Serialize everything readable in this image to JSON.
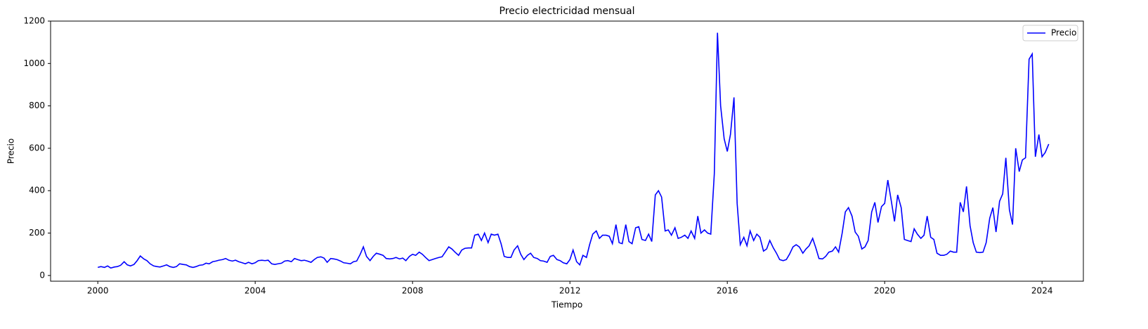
{
  "chart_data": {
    "type": "line",
    "title": "Precio electricidad mensual",
    "xlabel": "Tiempo",
    "ylabel": "Precio",
    "xlim": [
      1998.8,
      2025.05
    ],
    "xticks": [
      2000,
      2004,
      2008,
      2012,
      2016,
      2020,
      2024
    ],
    "ylim": [
      -27,
      1200
    ],
    "yticks": [
      0,
      200,
      400,
      600,
      800,
      1000,
      1200
    ],
    "legend": "upper right",
    "grid": false,
    "x": [
      2000.0,
      2000.08,
      2000.17,
      2000.25,
      2000.33,
      2000.42,
      2000.5,
      2000.58,
      2000.67,
      2000.75,
      2000.83,
      2000.92,
      2001.0,
      2001.08,
      2001.17,
      2001.25,
      2001.33,
      2001.42,
      2001.5,
      2001.58,
      2001.67,
      2001.75,
      2001.83,
      2001.92,
      2002.0,
      2002.08,
      2002.17,
      2002.25,
      2002.33,
      2002.42,
      2002.5,
      2002.58,
      2002.67,
      2002.75,
      2002.83,
      2002.92,
      2003.0,
      2003.08,
      2003.17,
      2003.25,
      2003.33,
      2003.42,
      2003.5,
      2003.58,
      2003.67,
      2003.75,
      2003.83,
      2003.92,
      2004.0,
      2004.08,
      2004.17,
      2004.25,
      2004.33,
      2004.42,
      2004.5,
      2004.58,
      2004.67,
      2004.75,
      2004.83,
      2004.92,
      2005.0,
      2005.08,
      2005.17,
      2005.25,
      2005.33,
      2005.42,
      2005.5,
      2005.58,
      2005.67,
      2005.75,
      2005.83,
      2005.92,
      2006.0,
      2006.08,
      2006.17,
      2006.25,
      2006.33,
      2006.42,
      2006.5,
      2006.58,
      2006.67,
      2006.75,
      2006.83,
      2006.92,
      2007.0,
      2007.08,
      2007.17,
      2007.25,
      2007.33,
      2007.42,
      2007.5,
      2007.58,
      2007.67,
      2007.75,
      2007.83,
      2007.92,
      2008.0,
      2008.08,
      2008.17,
      2008.25,
      2008.33,
      2008.42,
      2008.5,
      2008.58,
      2008.67,
      2008.75,
      2008.83,
      2008.92,
      2009.0,
      2009.08,
      2009.17,
      2009.25,
      2009.33,
      2009.42,
      2009.5,
      2009.58,
      2009.67,
      2009.75,
      2009.83,
      2009.92,
      2010.0,
      2010.08,
      2010.17,
      2010.25,
      2010.33,
      2010.42,
      2010.5,
      2010.58,
      2010.67,
      2010.75,
      2010.83,
      2010.92,
      2011.0,
      2011.08,
      2011.17,
      2011.25,
      2011.33,
      2011.42,
      2011.5,
      2011.58,
      2011.67,
      2011.75,
      2011.83,
      2011.92,
      2012.0,
      2012.08,
      2012.17,
      2012.25,
      2012.33,
      2012.42,
      2012.5,
      2012.58,
      2012.67,
      2012.75,
      2012.83,
      2012.92,
      2013.0,
      2013.08,
      2013.17,
      2013.25,
      2013.33,
      2013.42,
      2013.5,
      2013.58,
      2013.67,
      2013.75,
      2013.83,
      2013.92,
      2014.0,
      2014.08,
      2014.17,
      2014.25,
      2014.33,
      2014.42,
      2014.5,
      2014.58,
      2014.67,
      2014.75,
      2014.83,
      2014.92,
      2015.0,
      2015.08,
      2015.17,
      2015.25,
      2015.33,
      2015.42,
      2015.5,
      2015.58,
      2015.67,
      2015.75,
      2015.83,
      2015.92,
      2016.0,
      2016.08,
      2016.17,
      2016.25,
      2016.33,
      2016.42,
      2016.5,
      2016.58,
      2016.67,
      2016.75,
      2016.83,
      2016.92,
      2017.0,
      2017.08,
      2017.17,
      2017.25,
      2017.33,
      2017.42,
      2017.5,
      2017.58,
      2017.67,
      2017.75,
      2017.83,
      2017.92,
      2018.0,
      2018.08,
      2018.17,
      2018.25,
      2018.33,
      2018.42,
      2018.5,
      2018.58,
      2018.67,
      2018.75,
      2018.83,
      2018.92,
      2019.0,
      2019.08,
      2019.17,
      2019.25,
      2019.33,
      2019.42,
      2019.5,
      2019.58,
      2019.67,
      2019.75,
      2019.83,
      2019.92,
      2020.0,
      2020.08,
      2020.17,
      2020.25,
      2020.33,
      2020.42,
      2020.5,
      2020.58,
      2020.67,
      2020.75,
      2020.83,
      2020.92,
      2021.0,
      2021.08,
      2021.17,
      2021.25,
      2021.33,
      2021.42,
      2021.5,
      2021.58,
      2021.67,
      2021.75,
      2021.83,
      2021.92,
      2022.0,
      2022.08,
      2022.17,
      2022.25,
      2022.33,
      2022.42,
      2022.5,
      2022.58,
      2022.67,
      2022.75,
      2022.83,
      2022.92,
      2023.0,
      2023.08,
      2023.17,
      2023.25,
      2023.33,
      2023.42,
      2023.5,
      2023.58,
      2023.67,
      2023.75,
      2023.83,
      2023.92,
      2024.0,
      2024.08,
      2024.17
    ],
    "series": [
      {
        "name": "Precio",
        "color": "#0000ff",
        "values": [
          38,
          42,
          38,
          45,
          35,
          40,
          42,
          48,
          65,
          50,
          45,
          52,
          70,
          92,
          78,
          70,
          55,
          45,
          42,
          40,
          45,
          50,
          42,
          38,
          42,
          55,
          52,
          50,
          42,
          38,
          42,
          48,
          50,
          58,
          55,
          65,
          68,
          72,
          75,
          80,
          72,
          68,
          72,
          65,
          60,
          55,
          62,
          55,
          60,
          70,
          72,
          70,
          72,
          55,
          52,
          55,
          58,
          68,
          70,
          65,
          80,
          75,
          70,
          72,
          68,
          62,
          75,
          85,
          88,
          82,
          62,
          80,
          78,
          75,
          68,
          60,
          58,
          55,
          65,
          68,
          100,
          135,
          90,
          70,
          90,
          105,
          100,
          95,
          80,
          78,
          80,
          85,
          78,
          82,
          70,
          90,
          100,
          95,
          110,
          100,
          85,
          70,
          75,
          80,
          85,
          88,
          110,
          135,
          125,
          110,
          95,
          120,
          128,
          130,
          130,
          190,
          195,
          165,
          200,
          155,
          195,
          190,
          195,
          150,
          90,
          85,
          85,
          120,
          140,
          100,
          75,
          95,
          105,
          85,
          80,
          70,
          68,
          62,
          90,
          95,
          75,
          70,
          60,
          55,
          75,
          120,
          65,
          50,
          95,
          85,
          145,
          195,
          210,
          175,
          190,
          190,
          185,
          150,
          240,
          155,
          150,
          240,
          160,
          150,
          225,
          230,
          170,
          165,
          195,
          160,
          380,
          400,
          370,
          210,
          215,
          190,
          225,
          175,
          180,
          190,
          175,
          210,
          175,
          280,
          200,
          215,
          200,
          195,
          480,
          1145,
          800,
          645,
          585,
          665,
          840,
          340,
          145,
          180,
          140,
          210,
          165,
          195,
          180,
          115,
          125,
          165,
          130,
          105,
          75,
          70,
          75,
          100,
          135,
          145,
          135,
          105,
          125,
          140,
          175,
          130,
          80,
          78,
          90,
          110,
          115,
          135,
          110,
          200,
          300,
          320,
          280,
          205,
          185,
          125,
          135,
          165,
          300,
          345,
          250,
          325,
          340,
          450,
          350,
          255,
          380,
          320,
          170,
          165,
          160,
          220,
          195,
          175,
          190,
          280,
          180,
          170,
          105,
          95,
          95,
          100,
          115,
          110,
          110,
          345,
          300,
          420,
          235,
          155,
          110,
          108,
          110,
          155,
          270,
          320,
          205,
          350,
          385,
          555,
          310,
          240,
          600,
          490,
          545,
          555,
          1020,
          1045,
          560,
          665,
          560,
          580,
          620
        ]
      }
    ]
  }
}
